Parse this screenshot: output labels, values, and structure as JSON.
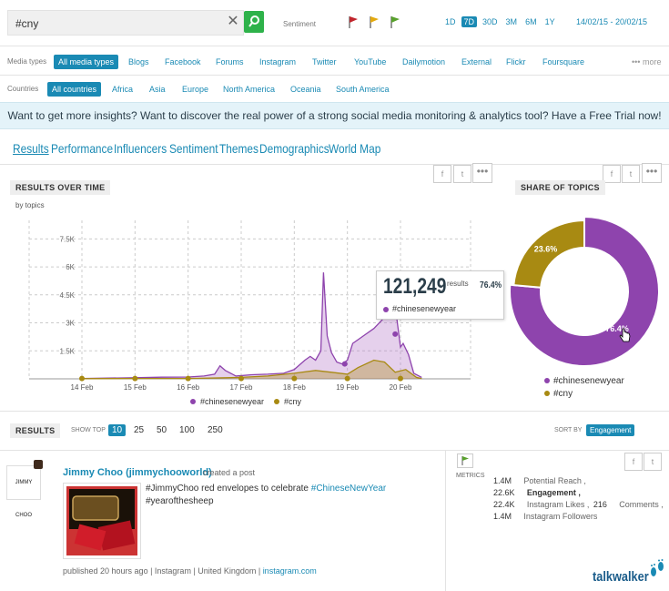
{
  "search": {
    "value": "#cny"
  },
  "sentiment_label": "Sentiment",
  "flags": {
    "negative": "#c0262d",
    "neutral": "#e3a90f",
    "positive": "#58a12c"
  },
  "ranges": [
    "1D",
    "7D",
    "30D",
    "3M",
    "6M",
    "1Y"
  ],
  "active_range": "7D",
  "date_range": "14/02/15 - 20/02/15",
  "media_types": {
    "label": "Media types",
    "items": [
      "All media types",
      "Blogs",
      "Facebook",
      "Forums",
      "Instagram",
      "Twitter",
      "YouTube",
      "Dailymotion",
      "External",
      "Flickr",
      "Foursquare"
    ],
    "more": "more"
  },
  "countries": {
    "label": "Countries",
    "items": [
      "All countries",
      "Africa",
      "Asia",
      "Europe",
      "North America",
      "Oceania",
      "South America"
    ]
  },
  "promo": "Want to get more insights? Want to discover the real power of a strong social media monitoring & analytics tool? Have a Free Trial now!",
  "tabs": [
    "Results",
    "Performance",
    "Influencers",
    "Sentiment",
    "Themes",
    "Demographics",
    "World Map"
  ],
  "results_over_time": {
    "title": "RESULTS OVER TIME",
    "subtitle": "by topics"
  },
  "share_of_topics": {
    "title": "SHARE OF TOPICS"
  },
  "tooltip": {
    "value": "121,249",
    "unit": "results",
    "percent": "76.4%",
    "topic": "#chinesenewyear"
  },
  "colors": {
    "purple": "#8e44ad",
    "gold": "#a88a12",
    "accent": "#1a8ab4"
  },
  "chart_data": [
    {
      "type": "area",
      "y_ticks": [
        "1.5K",
        "3K",
        "4.5K",
        "6K",
        "7.5K"
      ],
      "categories": [
        "14 Feb",
        "15 Feb",
        "16 Feb",
        "17 Feb",
        "18 Feb",
        "19 Feb",
        "20 Feb"
      ],
      "ylim": [
        0,
        8200
      ],
      "series": [
        {
          "name": "#chinesenewyear",
          "color": "#8e44ad",
          "points": [
            [
              0,
              20
            ],
            [
              0.5,
              40
            ],
            [
              1,
              60
            ],
            [
              1.5,
              90
            ],
            [
              2,
              100
            ],
            [
              2.3,
              150
            ],
            [
              2.5,
              250
            ],
            [
              2.6,
              700
            ],
            [
              2.7,
              450
            ],
            [
              2.9,
              150
            ],
            [
              3.2,
              220
            ],
            [
              3.5,
              250
            ],
            [
              3.8,
              300
            ],
            [
              4,
              500
            ],
            [
              4.2,
              1000
            ],
            [
              4.3,
              1200
            ],
            [
              4.4,
              1000
            ],
            [
              4.5,
              1500
            ],
            [
              4.55,
              5700
            ],
            [
              4.62,
              2300
            ],
            [
              4.7,
              1400
            ],
            [
              4.8,
              900
            ],
            [
              4.9,
              800
            ],
            [
              5,
              1000
            ],
            [
              5.1,
              1900
            ],
            [
              5.3,
              2300
            ],
            [
              5.5,
              2700
            ],
            [
              5.7,
              3300
            ],
            [
              5.8,
              3600
            ],
            [
              5.9,
              3900
            ],
            [
              6,
              1700
            ],
            [
              6.05,
              1900
            ],
            [
              6.15,
              1300
            ],
            [
              6.25,
              300
            ],
            [
              6.4,
              80
            ]
          ]
        },
        {
          "name": "#cny",
          "color": "#a88a12",
          "points": [
            [
              0,
              10
            ],
            [
              1,
              20
            ],
            [
              2,
              20
            ],
            [
              3,
              80
            ],
            [
              3.5,
              150
            ],
            [
              4,
              300
            ],
            [
              4.4,
              450
            ],
            [
              4.7,
              350
            ],
            [
              5,
              250
            ],
            [
              5.2,
              600
            ],
            [
              5.5,
              1000
            ],
            [
              5.7,
              900
            ],
            [
              5.9,
              350
            ],
            [
              6.1,
              500
            ],
            [
              6.3,
              80
            ],
            [
              6.4,
              10
            ]
          ]
        }
      ]
    },
    {
      "type": "pie",
      "labels": [
        "#chinesenewyear",
        "#cny"
      ],
      "values": [
        76.4,
        23.6
      ],
      "colors": [
        "#8e44ad",
        "#a88a12"
      ],
      "data_labels": [
        "76.4%",
        "23.6%"
      ]
    }
  ],
  "results": {
    "title": "RESULTS",
    "show_top_label": "SHOW TOP",
    "show_top_options": [
      "10",
      "25",
      "50",
      "100",
      "250"
    ],
    "active_option": "10",
    "sort_by_label": "SORT BY",
    "sort_by_value": "Engagement"
  },
  "post": {
    "avatar_text": "JIMMY CHOO",
    "author": "Jimmy Choo (jimmychooworld)",
    "action": "created a post",
    "text_plain_1": "#JimmyChoo red envelopes to celebrate ",
    "text_hashtag": "#ChineseNewYear",
    "text_plain_2": "#yearofthesheep",
    "published": "published 20 hours ago",
    "source": "Instagram",
    "country": "United Kingdom",
    "link": "instagram.com"
  },
  "metrics": {
    "label": "METRICS",
    "reach_num": "1.4M",
    "reach_lbl": "Potential Reach ,",
    "eng_num": "22.6K",
    "eng_lbl": "Engagement ,",
    "likes_num": "22.4K",
    "likes_lbl": "Instagram Likes ,",
    "comments_num": "216",
    "comments_lbl": "Comments ,",
    "followers_num": "1.4M",
    "followers_lbl": "Instagram Followers"
  },
  "brand": "talkwalker"
}
